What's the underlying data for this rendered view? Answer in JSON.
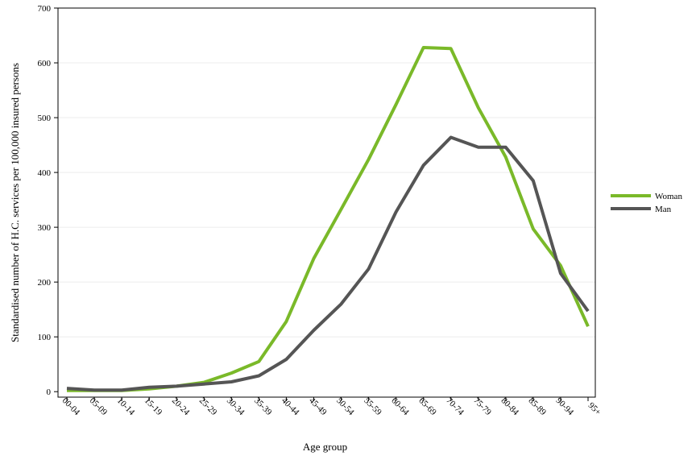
{
  "chart_data": {
    "type": "line",
    "title": "",
    "xlabel": "Age group",
    "ylabel": "Standardised number of H.C. services per 100,000 insured persons",
    "categories": [
      "00-04",
      "05-09",
      "10-14",
      "15-19",
      "20-24",
      "25-29",
      "30-34",
      "35-39",
      "40-44",
      "45-49",
      "50-54",
      "55-59",
      "60-64",
      "65-69",
      "70-74",
      "75-79",
      "80-84",
      "85-89",
      "90-94",
      "95+"
    ],
    "yticks": [
      0,
      100,
      200,
      300,
      400,
      500,
      600,
      700
    ],
    "ylim": [
      -10,
      700
    ],
    "grid": true,
    "legend_position": "right",
    "series": [
      {
        "name": "Woman",
        "color": "#7ab929",
        "values": [
          2,
          2,
          2,
          5,
          10,
          17,
          34,
          55,
          128,
          243,
          333,
          424,
          524,
          628,
          626,
          518,
          428,
          297,
          230,
          119
        ]
      },
      {
        "name": "Man",
        "color": "#555555",
        "values": [
          6,
          3,
          3,
          8,
          10,
          14,
          18,
          29,
          59,
          112,
          160,
          224,
          328,
          413,
          464,
          446,
          446,
          385,
          216,
          147
        ]
      }
    ]
  }
}
